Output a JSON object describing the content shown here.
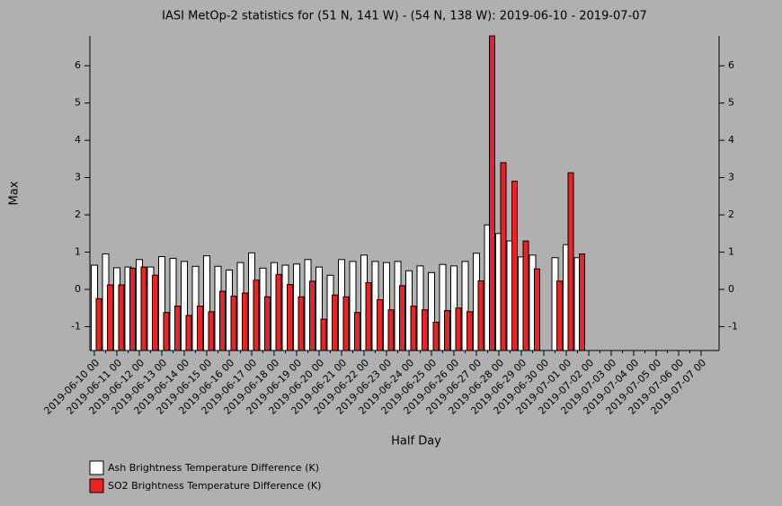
{
  "chart_data": {
    "type": "bar",
    "title": "IASI MetOp-2 statistics for (51 N, 141 W) - (54 N, 138 W): 2019-06-10 - 2019-07-07",
    "xlabel": "Half Day",
    "ylabel": "Max",
    "categories": [
      "2019-06-10 00",
      null,
      "2019-06-11 00",
      null,
      "2019-06-12 00",
      null,
      "2019-06-13 00",
      null,
      "2019-06-14 00",
      null,
      "2019-06-15 00",
      null,
      "2019-06-16 00",
      null,
      "2019-06-17 00",
      null,
      "2019-06-18 00",
      null,
      "2019-06-19 00",
      null,
      "2019-06-20 00",
      null,
      "2019-06-21 00",
      null,
      "2019-06-22 00",
      null,
      "2019-06-23 00",
      null,
      "2019-06-24 00",
      null,
      "2019-06-25 00",
      null,
      "2019-06-26 00",
      null,
      "2019-06-27 00",
      null,
      "2019-06-28 00",
      null,
      "2019-06-29 00",
      null,
      "2019-06-30 00",
      null,
      "2019-07-01 00",
      null,
      "2019-07-02 00",
      null,
      "2019-07-03 00",
      null,
      "2019-07-04 00",
      null,
      "2019-07-05 00",
      null,
      "2019-07-06 00",
      null,
      "2019-07-07 00"
    ],
    "series": [
      {
        "name": "Ash Brightness Temperature Difference (K)",
        "color": "#ffffff",
        "values": [
          0.65,
          0.95,
          0.58,
          0.6,
          0.8,
          0.6,
          0.88,
          0.83,
          0.75,
          0.62,
          0.9,
          0.62,
          0.52,
          0.72,
          0.98,
          0.57,
          0.72,
          0.65,
          0.68,
          0.8,
          0.6,
          0.38,
          0.8,
          0.75,
          0.92,
          0.75,
          0.72,
          0.75,
          0.5,
          0.63,
          0.45,
          0.67,
          0.63,
          0.75,
          0.97,
          1.73,
          1.5,
          1.3,
          0.87,
          0.92,
          null,
          0.85,
          1.2,
          0.85,
          null,
          null,
          null,
          null,
          null,
          null,
          null,
          null,
          null,
          null,
          null
        ]
      },
      {
        "name": "SO2 Brightness Temperature Difference (K)",
        "color": "#ee2222",
        "values": [
          -0.25,
          0.12,
          0.12,
          0.57,
          0.6,
          0.38,
          -0.62,
          -0.45,
          -0.7,
          -0.45,
          -0.6,
          -0.05,
          -0.18,
          -0.1,
          0.25,
          -0.2,
          0.4,
          0.13,
          -0.2,
          0.22,
          -0.8,
          -0.15,
          -0.2,
          -0.62,
          0.18,
          -0.28,
          -0.55,
          0.1,
          -0.45,
          -0.55,
          -0.88,
          -0.57,
          -0.5,
          -0.6,
          0.23,
          6.8,
          3.4,
          2.9,
          1.3,
          0.55,
          null,
          0.22,
          3.13,
          0.95,
          null,
          null,
          null,
          null,
          null,
          null,
          null,
          null,
          null,
          null,
          null
        ]
      }
    ],
    "ylim": [
      -1.64,
      6.8
    ],
    "yticks": [
      -1,
      0,
      1,
      2,
      3,
      4,
      5,
      6
    ]
  }
}
